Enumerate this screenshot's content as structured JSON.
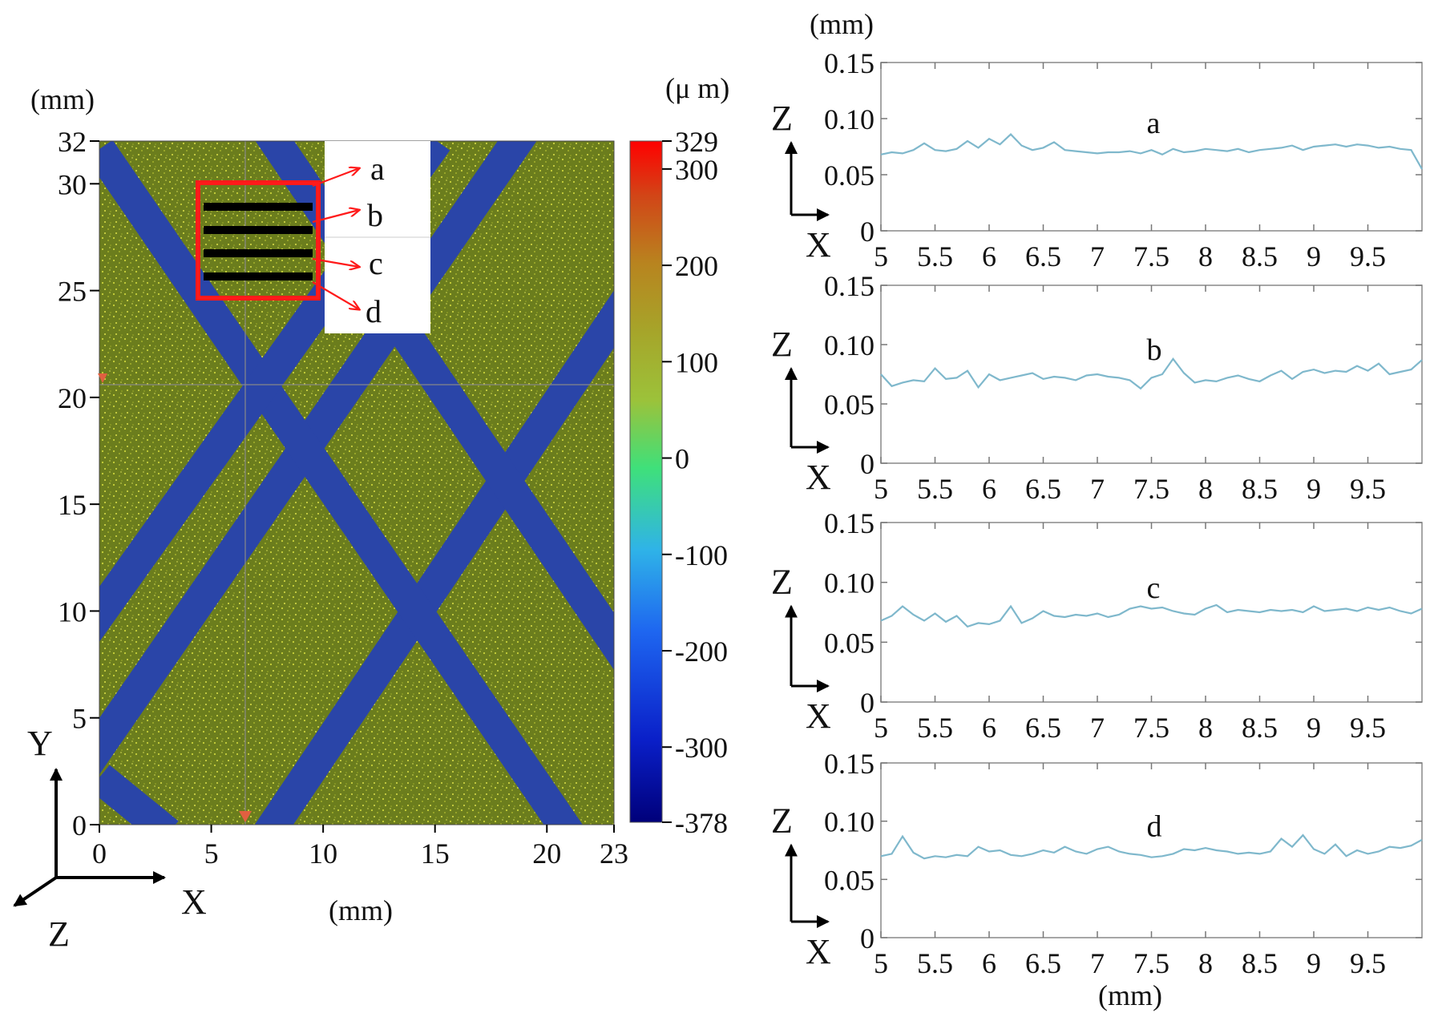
{
  "map": {
    "y_unit": "(mm)",
    "x_unit": "(mm)",
    "colorbar_unit": "(μ m)",
    "x_ticks": [
      "0",
      "5",
      "10",
      "15",
      "20",
      "23"
    ],
    "y_ticks": [
      "32",
      "30",
      "25",
      "20",
      "15",
      "10",
      "5",
      "0"
    ],
    "colorbar_ticks": [
      "329",
      "300",
      "200",
      "100",
      "0",
      "-100",
      "-200",
      "-300",
      "-378"
    ],
    "callout_labels": [
      "a",
      "b",
      "c",
      "d"
    ],
    "axis_x": "X",
    "axis_y": "Y",
    "axis_z": "Z",
    "colors": {
      "surface": "#6e7f1e",
      "groove": "#2a45a8",
      "highlight_box": "#ff1a1a"
    }
  },
  "profiles": {
    "y_unit": "(mm)",
    "x_unit": "(mm)",
    "axis_z": "Z",
    "axis_x": "X",
    "line_color": "#7fb8cc"
  },
  "chart_data": [
    {
      "type": "heatmap",
      "title": "",
      "xlabel": "(mm)",
      "ylabel": "(mm)",
      "xlim": [
        0,
        23
      ],
      "ylim": [
        0,
        32
      ],
      "colorbar_label": "(μ m)",
      "colorbar_range": [
        -378,
        329
      ],
      "x_ticks": [
        0,
        5,
        10,
        15,
        20,
        23
      ],
      "y_ticks": [
        0,
        5,
        10,
        15,
        20,
        25,
        30,
        32
      ],
      "annotations": [
        "a",
        "b",
        "c",
        "d"
      ]
    },
    {
      "type": "line",
      "label": "a",
      "ylabel": "(mm)",
      "xlim": [
        5,
        10
      ],
      "ylim": [
        0,
        0.15
      ],
      "x_ticks": [
        "5",
        "5.5",
        "6",
        "6.5",
        "7",
        "7.5",
        "8",
        "8.5",
        "9",
        "9.5"
      ],
      "y_ticks": [
        "0.15",
        "0.10",
        "0.05",
        "0"
      ],
      "x": [
        5.0,
        5.1,
        5.2,
        5.3,
        5.4,
        5.5,
        5.6,
        5.7,
        5.8,
        5.9,
        6.0,
        6.1,
        6.2,
        6.3,
        6.4,
        6.5,
        6.6,
        6.7,
        6.8,
        6.9,
        7.0,
        7.1,
        7.2,
        7.3,
        7.4,
        7.5,
        7.6,
        7.7,
        7.8,
        7.9,
        8.0,
        8.1,
        8.2,
        8.3,
        8.4,
        8.5,
        8.6,
        8.7,
        8.8,
        8.9,
        9.0,
        9.1,
        9.2,
        9.3,
        9.4,
        9.5,
        9.6,
        9.7,
        9.8,
        9.9,
        10.0
      ],
      "values": [
        0.068,
        0.07,
        0.069,
        0.072,
        0.078,
        0.072,
        0.071,
        0.073,
        0.08,
        0.074,
        0.082,
        0.077,
        0.086,
        0.076,
        0.072,
        0.074,
        0.079,
        0.072,
        0.071,
        0.07,
        0.069,
        0.07,
        0.07,
        0.071,
        0.069,
        0.072,
        0.068,
        0.073,
        0.07,
        0.071,
        0.073,
        0.072,
        0.071,
        0.073,
        0.07,
        0.072,
        0.073,
        0.074,
        0.076,
        0.072,
        0.075,
        0.076,
        0.077,
        0.075,
        0.077,
        0.076,
        0.074,
        0.075,
        0.073,
        0.072,
        0.055
      ]
    },
    {
      "type": "line",
      "label": "b",
      "ylabel": "(mm)",
      "xlim": [
        5,
        10
      ],
      "ylim": [
        0,
        0.15
      ],
      "x_ticks": [
        "5",
        "5.5",
        "6",
        "6.5",
        "7",
        "7.5",
        "8",
        "8.5",
        "9",
        "9.5"
      ],
      "y_ticks": [
        "0.15",
        "0.10",
        "0.05",
        "0"
      ],
      "x": [
        5.0,
        5.1,
        5.2,
        5.3,
        5.4,
        5.5,
        5.6,
        5.7,
        5.8,
        5.9,
        6.0,
        6.1,
        6.2,
        6.3,
        6.4,
        6.5,
        6.6,
        6.7,
        6.8,
        6.9,
        7.0,
        7.1,
        7.2,
        7.3,
        7.4,
        7.5,
        7.6,
        7.7,
        7.8,
        7.9,
        8.0,
        8.1,
        8.2,
        8.3,
        8.4,
        8.5,
        8.6,
        8.7,
        8.8,
        8.9,
        9.0,
        9.1,
        9.2,
        9.3,
        9.4,
        9.5,
        9.6,
        9.7,
        9.8,
        9.9,
        10.0
      ],
      "values": [
        0.075,
        0.065,
        0.068,
        0.07,
        0.069,
        0.08,
        0.071,
        0.072,
        0.078,
        0.064,
        0.075,
        0.07,
        0.072,
        0.074,
        0.076,
        0.071,
        0.073,
        0.072,
        0.07,
        0.074,
        0.075,
        0.073,
        0.072,
        0.07,
        0.063,
        0.072,
        0.075,
        0.088,
        0.076,
        0.068,
        0.07,
        0.069,
        0.072,
        0.074,
        0.071,
        0.069,
        0.074,
        0.078,
        0.071,
        0.077,
        0.079,
        0.076,
        0.078,
        0.077,
        0.082,
        0.078,
        0.084,
        0.075,
        0.077,
        0.079,
        0.087
      ]
    },
    {
      "type": "line",
      "label": "c",
      "ylabel": "(mm)",
      "xlim": [
        5,
        10
      ],
      "ylim": [
        0,
        0.15
      ],
      "x_ticks": [
        "5",
        "5.5",
        "6",
        "6.5",
        "7",
        "7.5",
        "8",
        "8.5",
        "9",
        "9.5"
      ],
      "y_ticks": [
        "0.15",
        "0.10",
        "0.05",
        "0"
      ],
      "x": [
        5.0,
        5.1,
        5.2,
        5.3,
        5.4,
        5.5,
        5.6,
        5.7,
        5.8,
        5.9,
        6.0,
        6.1,
        6.2,
        6.3,
        6.4,
        6.5,
        6.6,
        6.7,
        6.8,
        6.9,
        7.0,
        7.1,
        7.2,
        7.3,
        7.4,
        7.5,
        7.6,
        7.7,
        7.8,
        7.9,
        8.0,
        8.1,
        8.2,
        8.3,
        8.4,
        8.5,
        8.6,
        8.7,
        8.8,
        8.9,
        9.0,
        9.1,
        9.2,
        9.3,
        9.4,
        9.5,
        9.6,
        9.7,
        9.8,
        9.9,
        10.0
      ],
      "values": [
        0.068,
        0.072,
        0.08,
        0.073,
        0.068,
        0.074,
        0.067,
        0.072,
        0.063,
        0.066,
        0.065,
        0.068,
        0.08,
        0.066,
        0.07,
        0.076,
        0.072,
        0.071,
        0.073,
        0.072,
        0.074,
        0.071,
        0.073,
        0.078,
        0.08,
        0.078,
        0.079,
        0.076,
        0.074,
        0.073,
        0.078,
        0.081,
        0.075,
        0.077,
        0.076,
        0.075,
        0.077,
        0.076,
        0.077,
        0.075,
        0.08,
        0.076,
        0.077,
        0.078,
        0.076,
        0.079,
        0.077,
        0.079,
        0.076,
        0.074,
        0.078
      ]
    },
    {
      "type": "line",
      "label": "d",
      "ylabel": "(mm)",
      "xlim": [
        5,
        10
      ],
      "ylim": [
        0,
        0.15
      ],
      "x_ticks": [
        "5",
        "5.5",
        "6",
        "6.5",
        "7",
        "7.5",
        "8",
        "8.5",
        "9",
        "9.5"
      ],
      "y_ticks": [
        "0.15",
        "0.10",
        "0.05",
        "0"
      ],
      "x": [
        5.0,
        5.1,
        5.2,
        5.3,
        5.4,
        5.5,
        5.6,
        5.7,
        5.8,
        5.9,
        6.0,
        6.1,
        6.2,
        6.3,
        6.4,
        6.5,
        6.6,
        6.7,
        6.8,
        6.9,
        7.0,
        7.1,
        7.2,
        7.3,
        7.4,
        7.5,
        7.6,
        7.7,
        7.8,
        7.9,
        8.0,
        8.1,
        8.2,
        8.3,
        8.4,
        8.5,
        8.6,
        8.7,
        8.8,
        8.9,
        9.0,
        9.1,
        9.2,
        9.3,
        9.4,
        9.5,
        9.6,
        9.7,
        9.8,
        9.9,
        10.0
      ],
      "values": [
        0.07,
        0.072,
        0.087,
        0.073,
        0.068,
        0.07,
        0.069,
        0.071,
        0.07,
        0.078,
        0.074,
        0.075,
        0.071,
        0.07,
        0.072,
        0.075,
        0.073,
        0.078,
        0.074,
        0.072,
        0.076,
        0.078,
        0.074,
        0.072,
        0.071,
        0.069,
        0.07,
        0.072,
        0.076,
        0.075,
        0.077,
        0.075,
        0.074,
        0.072,
        0.073,
        0.072,
        0.074,
        0.085,
        0.078,
        0.088,
        0.076,
        0.072,
        0.08,
        0.07,
        0.075,
        0.072,
        0.074,
        0.078,
        0.077,
        0.079,
        0.084
      ]
    }
  ]
}
